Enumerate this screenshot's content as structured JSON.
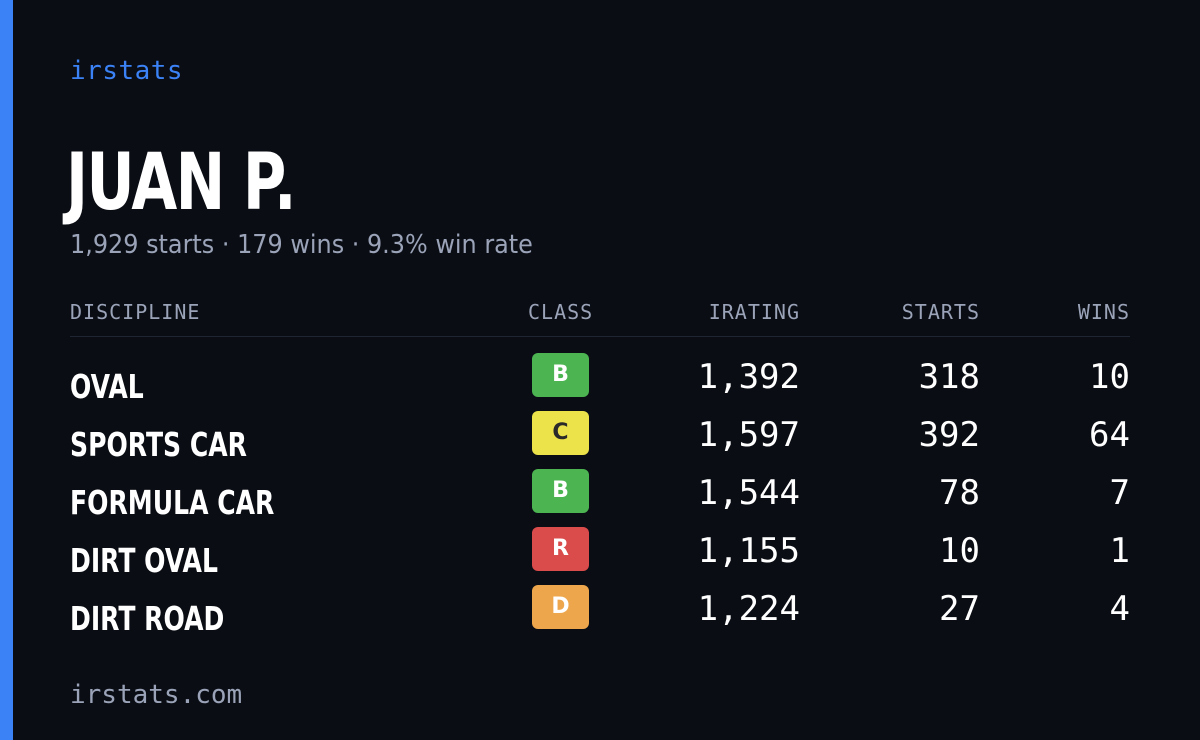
{
  "brand": "irstats",
  "driver": {
    "name": "JUAN P.",
    "summary": "1,929 starts · 179 wins · 9.3% win rate"
  },
  "table": {
    "headers": {
      "discipline": "DISCIPLINE",
      "class": "CLASS",
      "irating": "IRATING",
      "starts": "STARTS",
      "wins": "WINS"
    },
    "rows": [
      {
        "discipline": "OVAL",
        "class": "B",
        "class_color": "#4cb552",
        "class_text_color": "#ffffff",
        "irating": "1,392",
        "starts": "318",
        "wins": "10"
      },
      {
        "discipline": "SPORTS CAR",
        "class": "C",
        "class_color": "#ece24a",
        "class_text_color": "#2a2a2a",
        "irating": "1,597",
        "starts": "392",
        "wins": "64"
      },
      {
        "discipline": "FORMULA CAR",
        "class": "B",
        "class_color": "#4cb552",
        "class_text_color": "#ffffff",
        "irating": "1,544",
        "starts": "78",
        "wins": "7"
      },
      {
        "discipline": "DIRT OVAL",
        "class": "R",
        "class_color": "#da4b4b",
        "class_text_color": "#ffffff",
        "irating": "1,155",
        "starts": "10",
        "wins": "1"
      },
      {
        "discipline": "DIRT ROAD",
        "class": "D",
        "class_color": "#eda64b",
        "class_text_color": "#ffffff",
        "irating": "1,224",
        "starts": "27",
        "wins": "4"
      }
    ]
  },
  "footer": "irstats.com",
  "colors": {
    "accent": "#3b82f6",
    "background": "#0a0d14",
    "muted_text": "#9aa3b8"
  }
}
